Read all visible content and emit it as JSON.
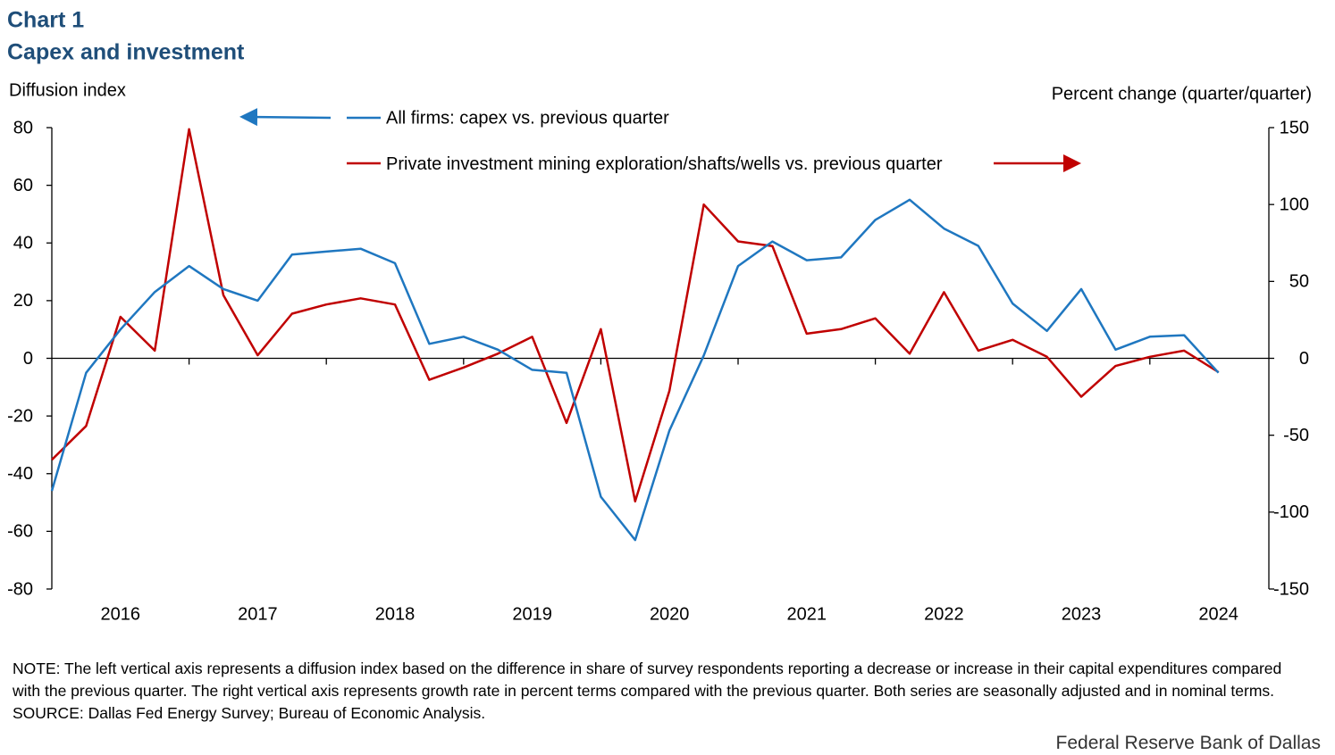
{
  "chart_data": {
    "type": "line",
    "title": "Chart 1",
    "subtitle": "Capex and investment",
    "y_label": "Diffusion index",
    "y2_label": "Percent change  (quarter/quarter)",
    "categories": [
      null,
      null,
      "2016",
      null,
      null,
      null,
      "2017",
      null,
      null,
      null,
      "2018",
      null,
      null,
      null,
      "2019",
      null,
      null,
      null,
      "2020",
      null,
      null,
      null,
      "2021",
      null,
      null,
      null,
      "2022",
      null,
      null,
      null,
      "2023",
      null,
      null,
      null,
      "2024"
    ],
    "series": [
      {
        "name": "All firms: capex vs. previous quarter",
        "color": "#1f77c0",
        "axis": "y",
        "values": [
          -46,
          -5,
          10,
          23,
          32,
          24,
          20,
          36,
          37,
          38,
          33,
          5,
          7.5,
          3,
          -4,
          -5,
          -48,
          -63,
          -25,
          1,
          32,
          40.5,
          34,
          35,
          48,
          55,
          45,
          39,
          19,
          9.5,
          24,
          3,
          7.5,
          8,
          -5
        ]
      },
      {
        "name": "Private investment mining exploration/shafts/wells vs. previous quarter",
        "color": "#c00000",
        "axis": "y2",
        "values": [
          -66,
          -44,
          27,
          5,
          149,
          41,
          2,
          29,
          35,
          39,
          35,
          -14,
          -6,
          3,
          14,
          -42,
          19,
          -93,
          -21,
          100,
          76,
          73,
          16,
          19,
          26,
          3,
          43,
          5,
          12,
          1,
          -25,
          -5,
          1,
          5,
          -9
        ]
      }
    ],
    "ylim": [
      -80,
      80
    ],
    "yticks": [
      -80,
      -60,
      -40,
      -20,
      0,
      20,
      40,
      60,
      80
    ],
    "y2lim": [
      -150,
      150
    ],
    "y2ticks": [
      -150,
      -100,
      -50,
      0,
      50,
      100,
      150
    ],
    "grid": false,
    "note": "NOTE: The left vertical axis represents a diffusion index based on the difference in share of survey respondents reporting a decrease or increase in their capital expenditures compared with the previous quarter. The right vertical axis represents growth rate in percent terms compared with the previous quarter. Both series are seasonally adjusted and in nominal terms.",
    "source": "SOURCE: Dallas Fed Energy Survey; Bureau of Economic Analysis.",
    "credit": "Federal Reserve Bank of Dallas"
  }
}
